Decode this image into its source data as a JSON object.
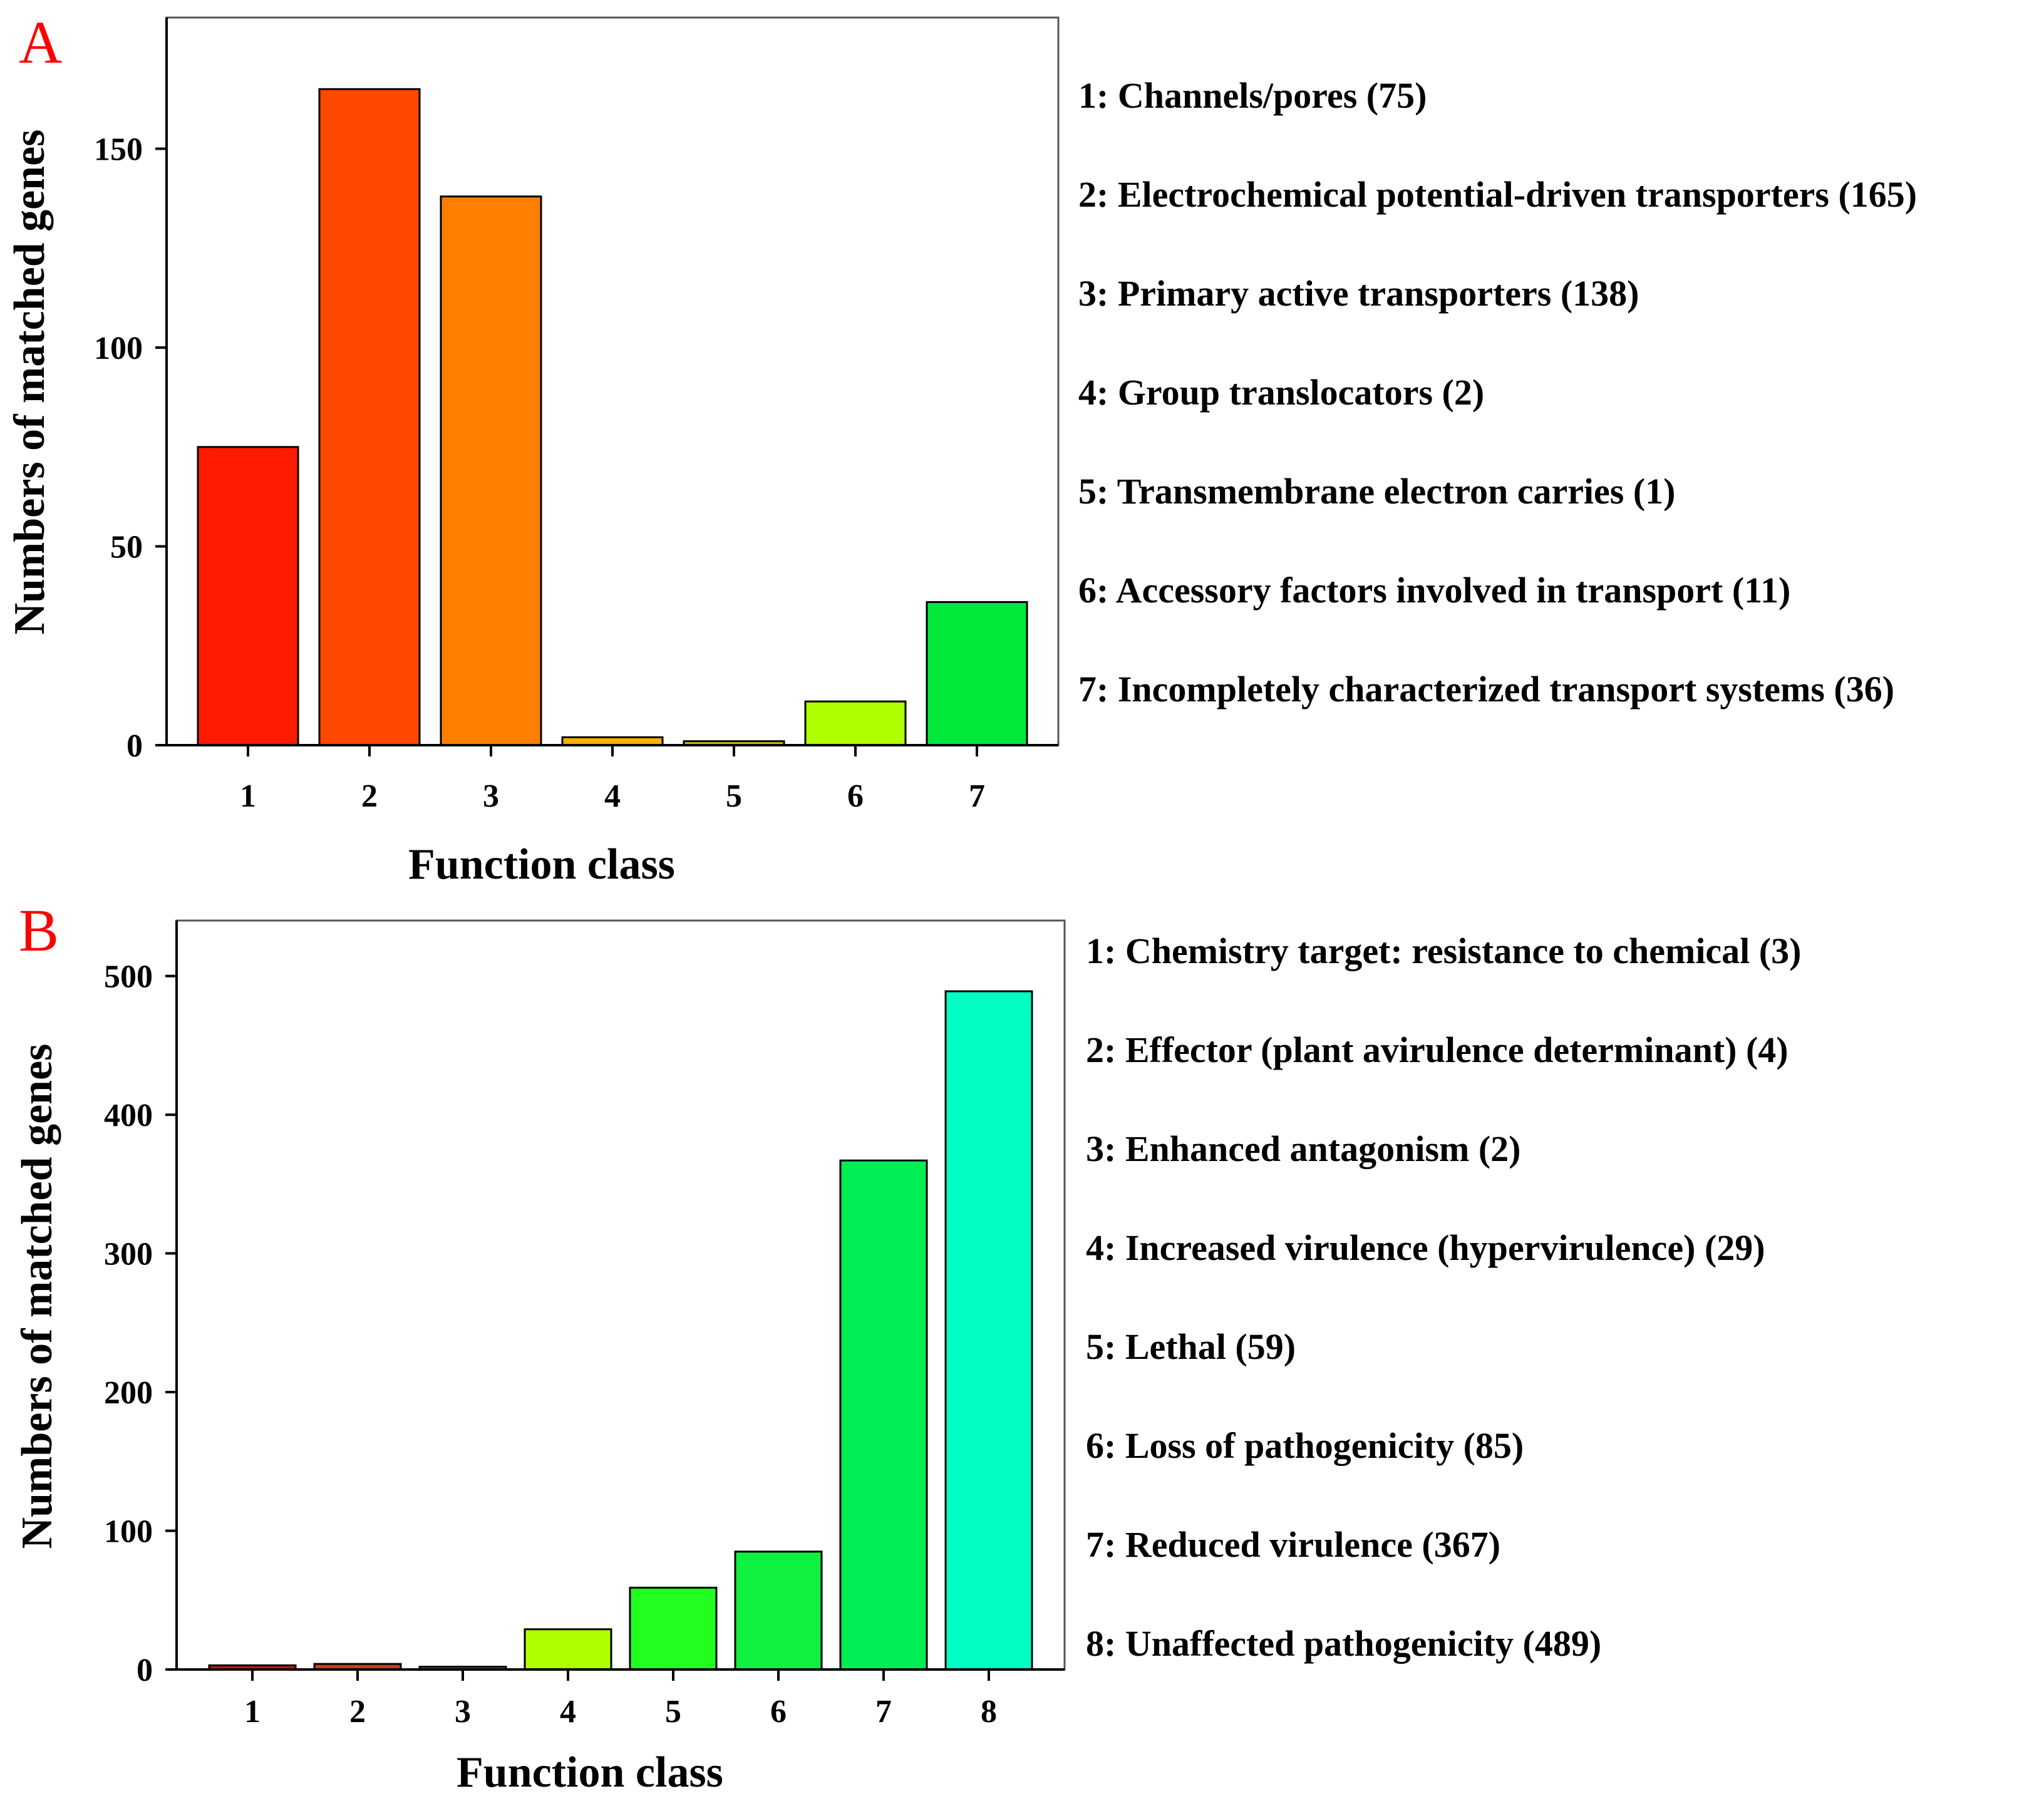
{
  "chart_data": [
    {
      "panel": "A",
      "type": "bar",
      "xlabel": "Function class",
      "ylabel": "Numbers of matched genes",
      "ylim": [
        0,
        183
      ],
      "yticks": [
        0,
        50,
        100,
        150
      ],
      "categories": [
        "1",
        "2",
        "3",
        "4",
        "5",
        "6",
        "7"
      ],
      "values": [
        75,
        165,
        138,
        2,
        1,
        11,
        36
      ],
      "colors": [
        "#ff1a00",
        "#ff4800",
        "#ff7f00",
        "#ffb000",
        "#d0c000",
        "#b0ff00",
        "#00e83a"
      ],
      "legend": [
        "1: Channels/pores (75)",
        "2: Electrochemical potential-driven transporters (165)",
        "3: Primary active transporters (138)",
        "4: Group translocators (2)",
        "5: Transmembrane electron carries (1)",
        "6: Accessory factors involved in transport (11)",
        "7: Incompletely characterized transport systems (36)"
      ]
    },
    {
      "panel": "B",
      "type": "bar",
      "xlabel": "Function class",
      "ylabel": "Numbers of matched genes",
      "ylim": [
        0,
        540
      ],
      "yticks": [
        0,
        100,
        200,
        300,
        400,
        500
      ],
      "categories": [
        "1",
        "2",
        "3",
        "4",
        "5",
        "6",
        "7",
        "8"
      ],
      "values": [
        3,
        4,
        2,
        29,
        59,
        85,
        367,
        489
      ],
      "colors": [
        "#d01010",
        "#c84010",
        "#707070",
        "#b0ff00",
        "#20ff20",
        "#10f040",
        "#00ee55",
        "#00ffc0"
      ],
      "legend": [
        "1: Chemistry target: resistance to chemical (3)",
        "2: Effector (plant avirulence determinant) (4)",
        "3: Enhanced antagonism (2)",
        "4: Increased virulence (hypervirulence) (29)",
        "5: Lethal (59)",
        "6: Loss of pathogenicity (85)",
        "7: Reduced virulence (367)",
        "8: Unaffected pathogenicity (489)"
      ]
    }
  ]
}
